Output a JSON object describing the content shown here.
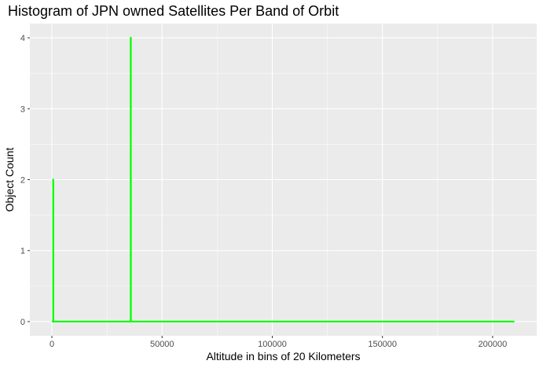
{
  "chart_data": {
    "type": "line",
    "title": "Histogram of JPN owned Satellites Per Band of Orbit",
    "xlabel": "Altitude in bins of 20 Kilometers",
    "ylabel": "Object Count",
    "xlim": [
      -10000,
      220000
    ],
    "ylim": [
      -0.2,
      4.2
    ],
    "x_ticks": [
      0,
      50000,
      100000,
      150000,
      200000
    ],
    "x_tick_labels": [
      "0",
      "50000",
      "100000",
      "150000",
      "200000"
    ],
    "y_ticks": [
      0,
      1,
      2,
      3,
      4
    ],
    "y_tick_labels": [
      "0",
      "1",
      "2",
      "3",
      "4"
    ],
    "grid": true,
    "background": "#ebebeb",
    "series": [
      {
        "color": "#00ff00",
        "x": [
          0,
          600,
          600,
          620,
          620,
          35780,
          35780,
          35800,
          35800,
          35820,
          35820,
          209900
        ],
        "y": [
          0,
          0,
          2,
          2,
          0,
          0,
          4,
          4,
          2,
          2,
          0,
          0
        ]
      }
    ]
  }
}
